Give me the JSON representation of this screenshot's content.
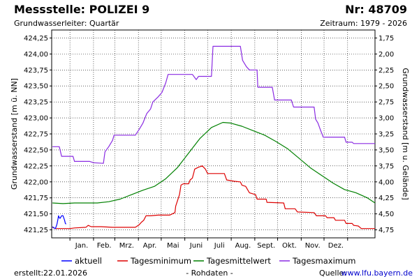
{
  "header": {
    "title": "Messstelle: POLIZEI 9",
    "number": "Nr: 48709",
    "aquifer": "Grundwasserleiter: Quartär",
    "period": "Zeitraum: 1979 - 2026"
  },
  "footer": {
    "created_label": "erstellt:",
    "created_date": "22.01.2026",
    "raw_data": "- Rohdaten -",
    "source_label": "Quelle:",
    "source_url": "www.lfu.bayern.de"
  },
  "colors": {
    "aktuell": "#0000ff",
    "min": "#dd0000",
    "mean": "#008000",
    "max": "#8a2be2",
    "grid": "#000000"
  },
  "chart_data": {
    "type": "line",
    "ylabel": "Grundwasserstand [m ü. NN]",
    "y2label": "Grundwasserstand [m u. Gelände]",
    "ylim": [
      421.125,
      424.375
    ],
    "y2_reference": 426.0,
    "y_ticks": [
      "424,25",
      "424,00",
      "423,75",
      "423,50",
      "423,25",
      "423,00",
      "422,75",
      "422,50",
      "422,25",
      "422,00",
      "421,75",
      "421,50",
      "421,25"
    ],
    "y2_ticks": [
      "1,75",
      "2,00",
      "2,25",
      "2,50",
      "2,75",
      "3,00",
      "3,25",
      "3,50",
      "3,75",
      "4,00",
      "4,25",
      "4,50",
      "4,75"
    ],
    "months": [
      "Jan.",
      "Feb.",
      "Mrz.",
      "Apr.",
      "Mai",
      "Juni",
      "Juli",
      "Aug.",
      "Sept.",
      "Okt.",
      "Nov.",
      "Dez."
    ],
    "grid": true,
    "legend_position": "bottom",
    "series": [
      {
        "name": "aktuell",
        "key": "aktuell",
        "points": [
          [
            1,
            421.3
          ],
          [
            3,
            421.28
          ],
          [
            5,
            421.27
          ],
          [
            7,
            421.34
          ],
          [
            8,
            421.4
          ],
          [
            9,
            421.47
          ],
          [
            10,
            421.44
          ],
          [
            11,
            421.43
          ],
          [
            13,
            421.47
          ],
          [
            15,
            421.47
          ],
          [
            17,
            421.4
          ],
          [
            18,
            421.35
          ],
          [
            19,
            421.34
          ]
        ]
      },
      {
        "name": "Tagesminimum",
        "key": "min",
        "points": [
          [
            1,
            421.29
          ],
          [
            5,
            421.27
          ],
          [
            12,
            421.27
          ],
          [
            24,
            421.27
          ],
          [
            30,
            421.28
          ],
          [
            45,
            421.29
          ],
          [
            48,
            421.32
          ],
          [
            52,
            421.3
          ],
          [
            65,
            421.3
          ],
          [
            80,
            421.29
          ],
          [
            110,
            421.29
          ],
          [
            115,
            421.33
          ],
          [
            118,
            421.37
          ],
          [
            121,
            421.4
          ],
          [
            124,
            421.47
          ],
          [
            130,
            421.47
          ],
          [
            140,
            421.48
          ],
          [
            155,
            421.48
          ],
          [
            162,
            421.52
          ],
          [
            163,
            421.62
          ],
          [
            168,
            421.8
          ],
          [
            170,
            421.95
          ],
          [
            173,
            421.97
          ],
          [
            180,
            421.97
          ],
          [
            182,
            422.03
          ],
          [
            185,
            422.06
          ],
          [
            187,
            422.15
          ],
          [
            188,
            422.2
          ],
          [
            193,
            422.23
          ],
          [
            198,
            422.25
          ],
          [
            202,
            422.2
          ],
          [
            205,
            422.13
          ],
          [
            214,
            422.13
          ],
          [
            227,
            422.13
          ],
          [
            230,
            422.03
          ],
          [
            240,
            422.01
          ],
          [
            248,
            422.0
          ],
          [
            250,
            421.95
          ],
          [
            255,
            421.93
          ],
          [
            260,
            421.83
          ],
          [
            268,
            421.8
          ],
          [
            270,
            421.73
          ],
          [
            282,
            421.73
          ],
          [
            283,
            421.68
          ],
          [
            305,
            421.67
          ],
          [
            307,
            421.58
          ],
          [
            320,
            421.58
          ],
          [
            323,
            421.53
          ],
          [
            345,
            421.52
          ],
          [
            348,
            421.47
          ],
          [
            360,
            421.47
          ],
          [
            362,
            421.44
          ],
          [
            371,
            421.44
          ],
          [
            373,
            421.4
          ],
          [
            385,
            421.4
          ],
          [
            387,
            421.35
          ],
          [
            395,
            421.35
          ],
          [
            397,
            421.32
          ],
          [
            403,
            421.31
          ],
          [
            407,
            421.27
          ],
          [
            425,
            421.27
          ]
        ]
      },
      {
        "name": "Tagesmittelwert",
        "key": "mean",
        "points": [
          [
            1,
            421.67
          ],
          [
            15,
            421.66
          ],
          [
            30,
            421.67
          ],
          [
            45,
            421.67
          ],
          [
            60,
            421.67
          ],
          [
            75,
            421.69
          ],
          [
            90,
            421.73
          ],
          [
            105,
            421.8
          ],
          [
            120,
            421.87
          ],
          [
            135,
            421.93
          ],
          [
            150,
            422.05
          ],
          [
            165,
            422.22
          ],
          [
            180,
            422.45
          ],
          [
            195,
            422.68
          ],
          [
            210,
            422.85
          ],
          [
            225,
            422.93
          ],
          [
            235,
            422.92
          ],
          [
            250,
            422.87
          ],
          [
            265,
            422.8
          ],
          [
            280,
            422.73
          ],
          [
            295,
            422.63
          ],
          [
            310,
            422.52
          ],
          [
            325,
            422.37
          ],
          [
            340,
            422.22
          ],
          [
            355,
            422.1
          ],
          [
            370,
            421.98
          ],
          [
            385,
            421.88
          ],
          [
            400,
            421.83
          ],
          [
            415,
            421.75
          ],
          [
            425,
            421.67
          ]
        ]
      },
      {
        "name": "Tagesmaximum",
        "key": "max",
        "points": [
          [
            1,
            422.55
          ],
          [
            10,
            422.55
          ],
          [
            13,
            422.4
          ],
          [
            28,
            422.4
          ],
          [
            30,
            422.32
          ],
          [
            50,
            422.32
          ],
          [
            55,
            422.3
          ],
          [
            68,
            422.29
          ],
          [
            70,
            422.47
          ],
          [
            75,
            422.55
          ],
          [
            80,
            422.65
          ],
          [
            82,
            422.73
          ],
          [
            110,
            422.73
          ],
          [
            115,
            422.82
          ],
          [
            120,
            422.92
          ],
          [
            125,
            423.07
          ],
          [
            130,
            423.14
          ],
          [
            133,
            423.25
          ],
          [
            140,
            423.33
          ],
          [
            145,
            423.4
          ],
          [
            150,
            423.55
          ],
          [
            153,
            423.68
          ],
          [
            165,
            423.68
          ],
          [
            185,
            423.68
          ],
          [
            190,
            423.6
          ],
          [
            193,
            423.65
          ],
          [
            210,
            423.65
          ],
          [
            212,
            424.12
          ],
          [
            248,
            424.12
          ],
          [
            251,
            423.9
          ],
          [
            256,
            423.8
          ],
          [
            260,
            423.75
          ],
          [
            270,
            423.75
          ],
          [
            271,
            423.48
          ],
          [
            290,
            423.48
          ],
          [
            293,
            423.28
          ],
          [
            315,
            423.28
          ],
          [
            318,
            423.17
          ],
          [
            345,
            423.17
          ],
          [
            347,
            422.98
          ],
          [
            350,
            422.92
          ],
          [
            353,
            422.82
          ],
          [
            357,
            422.7
          ],
          [
            385,
            422.7
          ],
          [
            387,
            422.62
          ],
          [
            395,
            422.62
          ],
          [
            397,
            422.6
          ],
          [
            425,
            422.6
          ]
        ]
      }
    ]
  }
}
